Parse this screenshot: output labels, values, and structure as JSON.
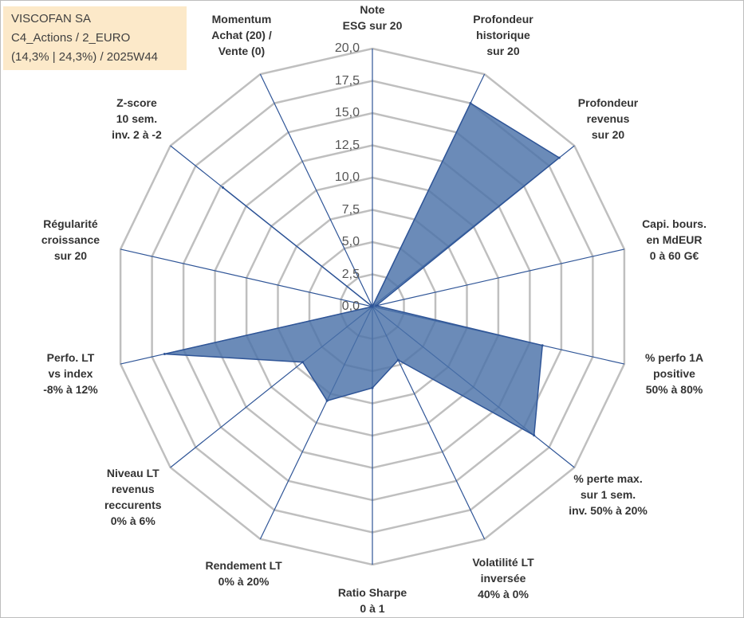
{
  "title_box": {
    "line1": "VISCOFAN SA",
    "line2": "C4_Actions / 2_EURO",
    "line3": "(14,3% | 24,3%) / 2025W44"
  },
  "chart_data": {
    "type": "radar",
    "title": "",
    "rlim": [
      0,
      20
    ],
    "grid": true,
    "r_ticks": [
      "0,0",
      "2,5",
      "5,0",
      "7,5",
      "10,0",
      "12,5",
      "15,0",
      "17,5",
      "20,0"
    ],
    "axes": [
      "Note\nESG sur 20",
      "Profondeur\nhistorique\nsur 20",
      "Profondeur\nrevenus\nsur 20",
      "Capi. bours.\nen MdEUR\n0 à 60 G€",
      "% perfo 1A\npositive\n50% à 80%",
      "% perte max.\nsur 1 sem.\ninv. 50% à 20%",
      "Volatilité LT\ninversée\n40% à 0%",
      "Ratio Sharpe\n0 à 1",
      "Rendement LT\n0% à 20%",
      "Niveau LT\nrevenus\nreccurents\n0% à 6%",
      "Perfo. LT\nvs index\n-8% à 12%",
      "Régularité\ncroissance\nsur 20",
      "Z-score\n10 sem.\ninv. 2 à -2",
      "Momentum\nAchat (20) /\nVente (0)"
    ],
    "series": [
      {
        "values": [
          0,
          17.5,
          18.5,
          0.3,
          13.5,
          16,
          4.6,
          6.3,
          8.1,
          6.9,
          16.5,
          0,
          14.8,
          0
        ]
      }
    ],
    "colors": {
      "fill": "#4a72a8",
      "stroke": "#2f5597",
      "grid": "#bfbfbf",
      "spoke": "#2f5597"
    }
  }
}
